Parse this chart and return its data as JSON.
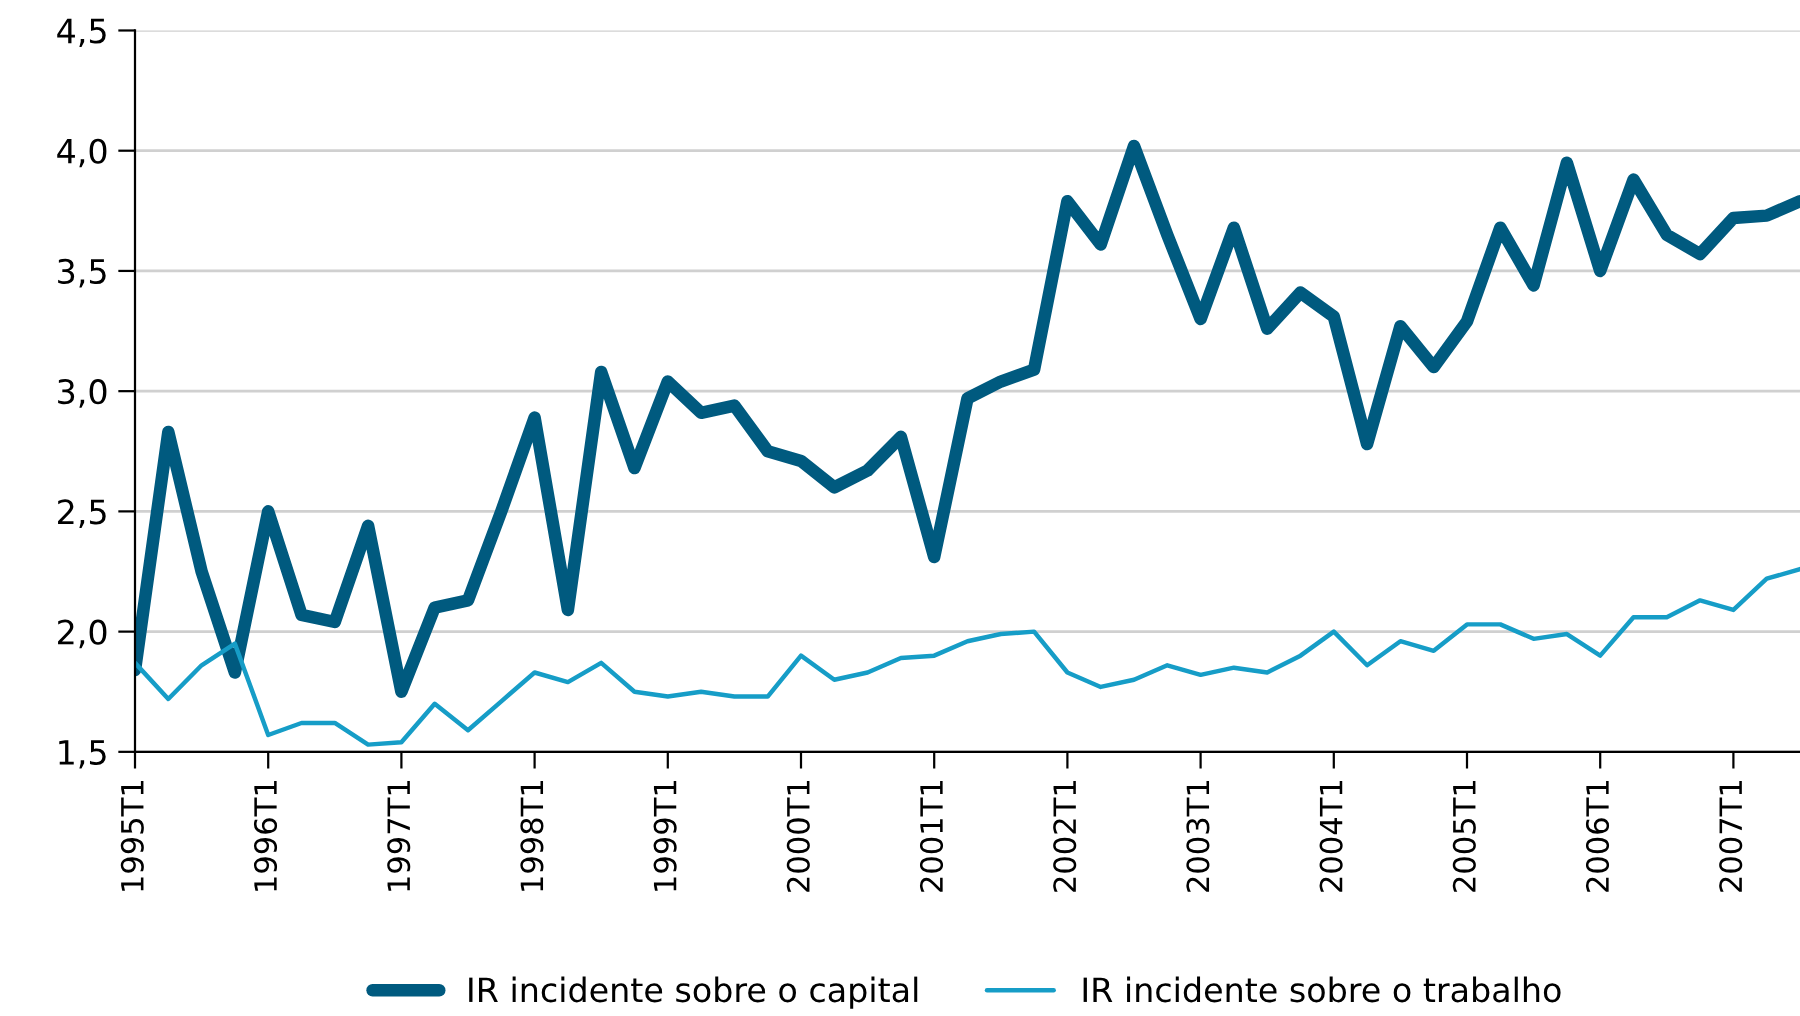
{
  "chart_data": {
    "type": "line",
    "categories": [
      "1995T1",
      null,
      null,
      null,
      "1996T1",
      null,
      null,
      null,
      "1997T1",
      null,
      null,
      null,
      "1998T1",
      null,
      null,
      null,
      "1999T1",
      null,
      null,
      null,
      "2000T1",
      null,
      null,
      null,
      "2001T1",
      null,
      null,
      null,
      "2002T1",
      null,
      null,
      null,
      "2003T1",
      null,
      null,
      null,
      "2004T1",
      null,
      null,
      null,
      "2005T1",
      null,
      null,
      null,
      "2006T1",
      null,
      null,
      null,
      "2007T1",
      null,
      null
    ],
    "series": [
      {
        "name": "IR incidente sobre o capital",
        "color": "#005a7f",
        "values": [
          1.84,
          2.83,
          2.25,
          1.83,
          2.5,
          2.07,
          2.04,
          2.44,
          1.75,
          2.1,
          2.13,
          2.5,
          2.89,
          2.09,
          3.08,
          2.68,
          3.04,
          2.91,
          2.94,
          2.75,
          2.71,
          2.6,
          2.67,
          2.81,
          2.31,
          2.97,
          3.04,
          3.09,
          3.79,
          3.61,
          4.02,
          3.65,
          3.3,
          3.68,
          3.26,
          3.41,
          3.31,
          2.78,
          3.27,
          3.1,
          3.29,
          3.68,
          3.44,
          3.95,
          3.5,
          3.88,
          3.65,
          3.57,
          3.72,
          3.73,
          3.79
        ]
      },
      {
        "name": "IR incidente sobre o trabalho",
        "color": "#169dc7",
        "values": [
          1.87,
          1.72,
          1.86,
          1.95,
          1.57,
          1.62,
          1.62,
          1.53,
          1.54,
          1.7,
          1.59,
          1.71,
          1.83,
          1.79,
          1.87,
          1.75,
          1.73,
          1.75,
          1.73,
          1.73,
          1.9,
          1.8,
          1.83,
          1.89,
          1.9,
          1.96,
          1.99,
          2.0,
          1.83,
          1.77,
          1.8,
          1.86,
          1.82,
          1.85,
          1.83,
          1.9,
          2.0,
          1.86,
          1.96,
          1.92,
          2.03,
          2.03,
          1.97,
          1.99,
          1.9,
          2.06,
          2.06,
          2.13,
          2.09,
          2.22,
          2.26
        ]
      }
    ],
    "ylim": [
      1.5,
      4.5
    ],
    "yticks": [
      {
        "value": 1.5,
        "label": "1,5"
      },
      {
        "value": 2.0,
        "label": "2,0"
      },
      {
        "value": 2.5,
        "label": "2,5"
      },
      {
        "value": 3.0,
        "label": "3,0"
      },
      {
        "value": 3.5,
        "label": "3,5"
      },
      {
        "value": 4.0,
        "label": "4,0"
      },
      {
        "value": 4.5,
        "label": "4,5"
      }
    ],
    "grid": "y",
    "legend": "bottom",
    "marker": "none",
    "line_style": "solid"
  }
}
